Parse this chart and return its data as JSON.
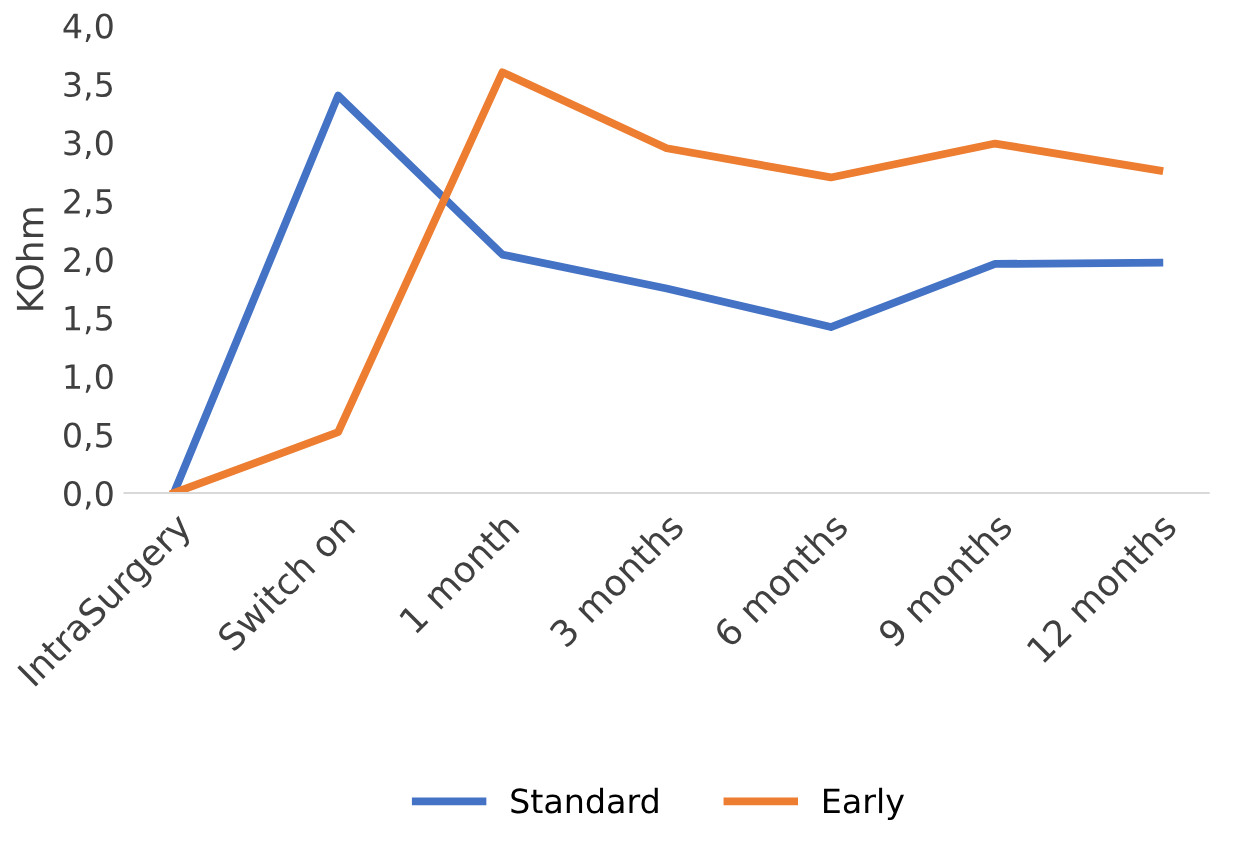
{
  "chart_data": {
    "type": "line",
    "ylabel": "KOhm",
    "categories": [
      "IntraSurgery",
      "Switch on",
      "1 month",
      "3 months",
      "6 months",
      "9 months",
      "12 months"
    ],
    "series": [
      {
        "name": "Standard",
        "color": "#4472c4",
        "values": [
          0.0,
          3.4,
          2.04,
          1.75,
          1.42,
          1.96,
          1.97
        ]
      },
      {
        "name": "Early",
        "color": "#ed7d31",
        "values": [
          0.0,
          0.52,
          3.6,
          2.95,
          2.7,
          2.99,
          2.76
        ]
      }
    ],
    "ylim": [
      0,
      4
    ],
    "yticks": [
      {
        "value": 0,
        "label": "0,0"
      },
      {
        "value": 0.5,
        "label": "0,5"
      },
      {
        "value": 1,
        "label": "1,0"
      },
      {
        "value": 1.5,
        "label": "1,5"
      },
      {
        "value": 2,
        "label": "2,0"
      },
      {
        "value": 2.5,
        "label": "2,5"
      },
      {
        "value": 3,
        "label": "3,0"
      },
      {
        "value": 3.5,
        "label": "3,5"
      },
      {
        "value": 4,
        "label": "4,0"
      }
    ],
    "grid": false,
    "legend": "bottom",
    "marker": "none",
    "line_style": "solid"
  }
}
